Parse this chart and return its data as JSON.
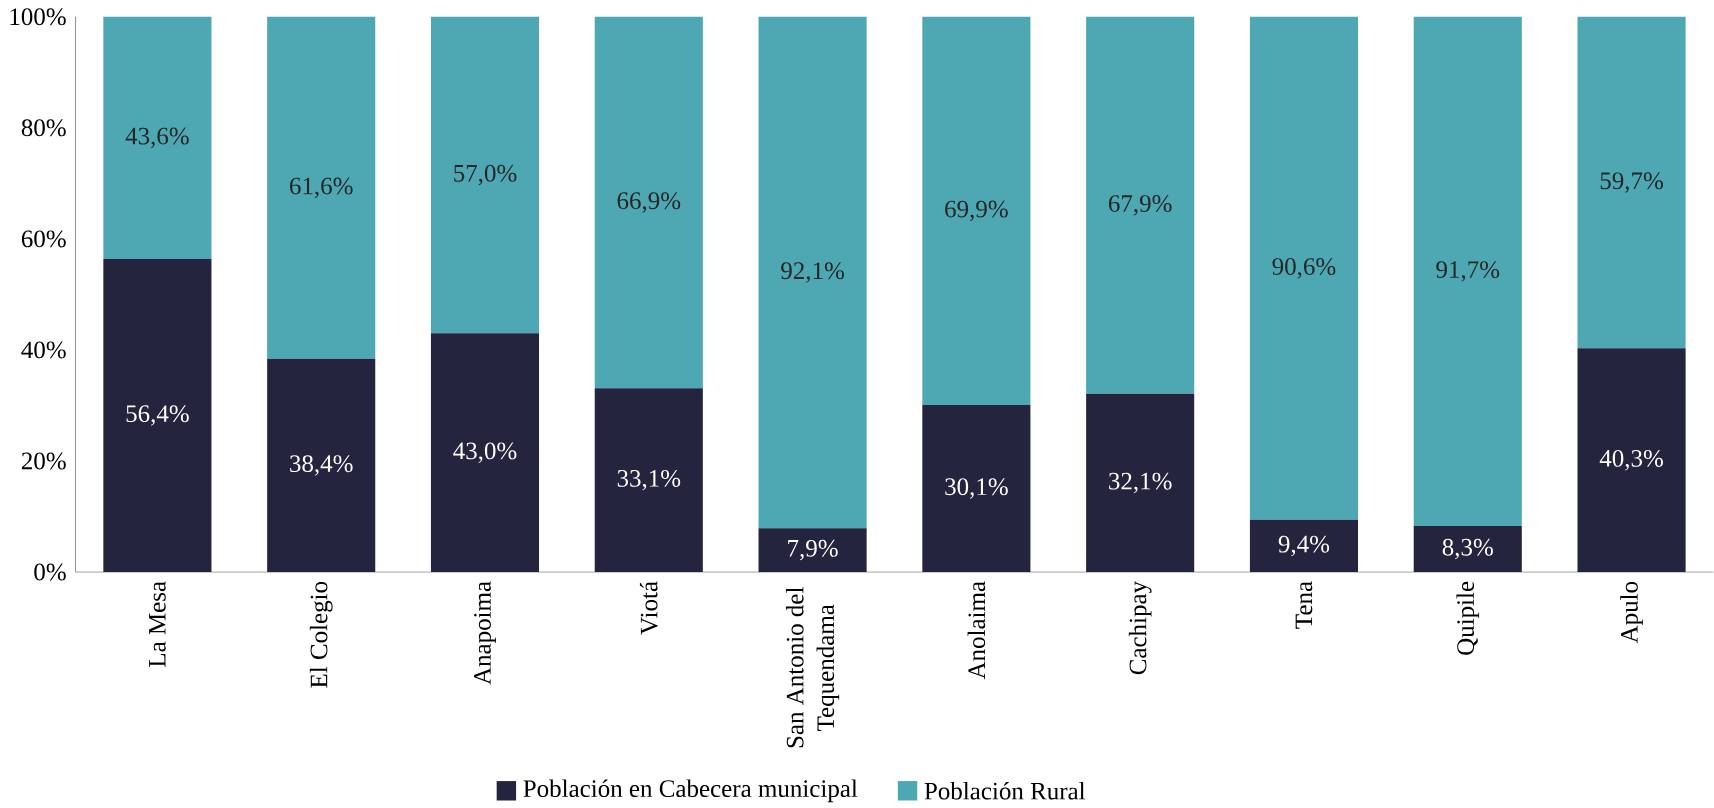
{
  "chart_data": {
    "type": "bar",
    "stacked": true,
    "categories": [
      "La Mesa",
      "El Colegio",
      "Anapoima",
      "Viotá",
      "San Antonio del Tequendama",
      "Anolaima",
      "Cachipay",
      "Tena",
      "Quipile",
      "Apulo"
    ],
    "series": [
      {
        "name": "Población en Cabecera municipal",
        "color": "#24243f",
        "values": [
          56.4,
          38.4,
          43.0,
          33.1,
          7.9,
          30.1,
          32.1,
          9.4,
          8.3,
          40.3
        ],
        "value_labels": [
          "56,4%",
          "38,4%",
          "43,0%",
          "33,1%",
          "7,9%",
          "30,1%",
          "32,1%",
          "9,4%",
          "8,3%",
          "40,3%"
        ]
      },
      {
        "name": "Población Rural",
        "color": "#4ea8b3",
        "values": [
          43.6,
          61.6,
          57.0,
          66.9,
          92.1,
          69.9,
          67.9,
          90.6,
          91.7,
          59.7
        ],
        "value_labels": [
          "43,6%",
          "61,6%",
          "57,0%",
          "66,9%",
          "92,1%",
          "69,9%",
          "67,9%",
          "90,6%",
          "91,7%",
          "59,7%"
        ]
      }
    ],
    "ylim": [
      0,
      100
    ],
    "yticks": [
      {
        "value": 0,
        "label": "0%"
      },
      {
        "value": 20,
        "label": "20%"
      },
      {
        "value": 40,
        "label": "40%"
      },
      {
        "value": 60,
        "label": "60%"
      },
      {
        "value": 80,
        "label": "80%"
      },
      {
        "value": 100,
        "label": "100%"
      }
    ],
    "legend": "bottom"
  }
}
